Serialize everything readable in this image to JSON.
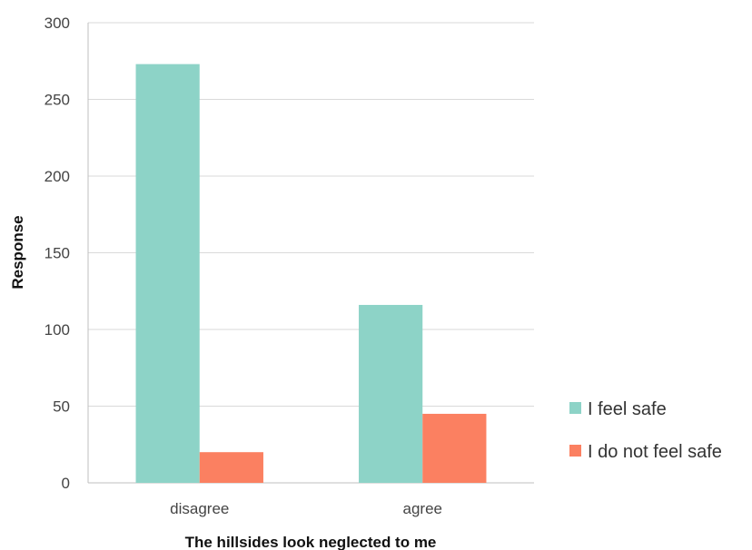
{
  "chart_data": {
    "type": "bar",
    "categories": [
      "disagree",
      "agree"
    ],
    "series": [
      {
        "name": "I feel safe",
        "values": [
          273,
          116
        ],
        "color": "#8dd3c7"
      },
      {
        "name": "I do not feel safe",
        "values": [
          20,
          45
        ],
        "color": "#fb8061"
      }
    ],
    "xlabel": "The hillsides look neglected to me",
    "ylabel": "Response",
    "ylim": [
      0,
      300
    ],
    "yticks": [
      0,
      50,
      100,
      150,
      200,
      250,
      300
    ],
    "grid": true,
    "legend_position": "right"
  }
}
